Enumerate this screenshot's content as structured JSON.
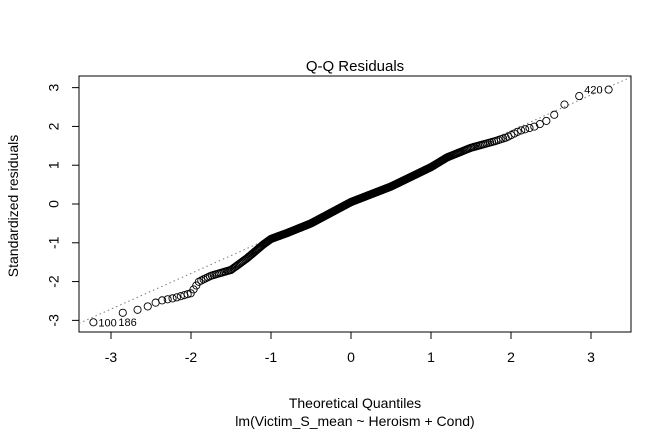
{
  "chart_data": {
    "type": "scatter",
    "title": "Q-Q Residuals",
    "xlabel": "Theoretical Quantiles",
    "subtitle": "lm(Victim_S_mean ~ Heroism + Cond)",
    "ylabel": "Standardized residuals",
    "xlim": [
      -3.4,
      3.5
    ],
    "ylim": [
      -3.3,
      3.3
    ],
    "x_ticks": [
      -3,
      -2,
      -1,
      0,
      1,
      2,
      3
    ],
    "y_ticks": [
      -3,
      -2,
      -1,
      0,
      1,
      2,
      3
    ],
    "reference_line": {
      "style": "dotted",
      "slope": 0.92,
      "intercept": 0.05
    },
    "annotations": [
      {
        "text": "420",
        "x": 3.22,
        "y": 2.95
      },
      {
        "text": "100",
        "x": -3.22,
        "y": -3.05
      },
      {
        "text": "186",
        "x": -2.97,
        "y": -3.04
      }
    ],
    "curve_nodes": {
      "x": [
        -3.22,
        -3.15,
        -3.0,
        -2.85,
        -2.6,
        -2.4,
        -2.2,
        -2.0,
        -1.9,
        -1.75,
        -1.5,
        -1.3,
        -1.1,
        -1.0,
        -0.8,
        -0.5,
        0.0,
        0.5,
        0.8,
        1.0,
        1.2,
        1.5,
        1.8,
        1.95,
        2.1,
        2.3,
        2.5,
        2.6,
        2.75,
        2.9,
        3.05,
        3.22
      ],
      "y": [
        -3.05,
        -3.04,
        -3.04,
        -2.8,
        -2.7,
        -2.5,
        -2.42,
        -2.3,
        -2.0,
        -1.85,
        -1.7,
        -1.4,
        -1.05,
        -0.9,
        -0.75,
        -0.5,
        0.05,
        0.45,
        0.75,
        0.95,
        1.2,
        1.45,
        1.62,
        1.72,
        1.88,
        2.0,
        2.2,
        2.45,
        2.7,
        2.82,
        2.92,
        2.95
      ]
    },
    "point_count": 430,
    "grid": false,
    "legend": "none"
  }
}
